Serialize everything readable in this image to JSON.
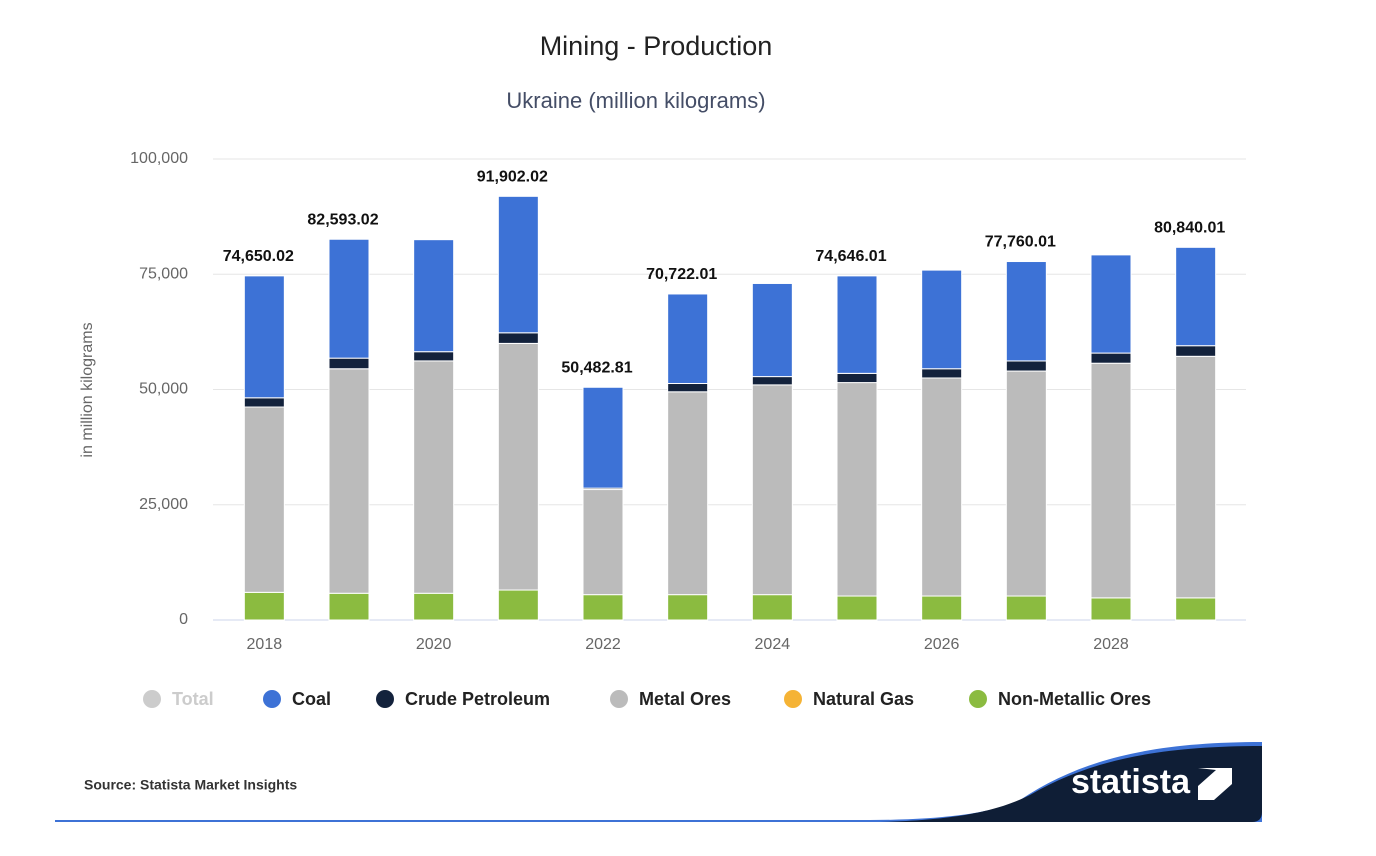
{
  "chart_data": {
    "type": "stacked_bar",
    "title": "Mining - Production",
    "subtitle": "Ukraine (million kilograms)",
    "y_label": "in million kilograms",
    "categories": [
      "2018",
      null,
      "2020",
      null,
      "2022",
      null,
      "2024",
      null,
      "2026",
      null,
      "2028",
      null
    ],
    "ylim": [
      0,
      100000
    ],
    "yticks": [
      0,
      {
        "value": 25000,
        "label": "25,000"
      },
      {
        "value": 50000,
        "label": "50,000"
      },
      {
        "value": 75000,
        "label": "75,000"
      },
      {
        "value": 100000,
        "label": "100,000"
      }
    ],
    "grid": true,
    "series": [
      {
        "name": "Total",
        "color": "#cccccc",
        "hidden": true,
        "values": [
          74650.02,
          82593.02,
          null,
          91902.02,
          50482.81,
          70722.01,
          null,
          74646.01,
          null,
          77760.01,
          null,
          80840.01
        ],
        "value_labels": [
          "74,650.02",
          "82,593.02",
          null,
          "91,902.02",
          "50,482.81",
          "70,722.01",
          null,
          "74,646.01",
          null,
          "77,760.01",
          null,
          "80,840.01"
        ]
      },
      {
        "name": "Coal",
        "color": "#3d72d6",
        "values": [
          26450,
          25793,
          24300,
          29602,
          21883,
          19422,
          20200,
          21146,
          21400,
          21560,
          21300,
          21340
        ]
      },
      {
        "name": "Crude Petroleum",
        "color": "#13223c",
        "values": [
          2000,
          2300,
          2000,
          2300,
          300,
          1800,
          1800,
          2000,
          2000,
          2200,
          2200,
          2300
        ]
      },
      {
        "name": "Metal Ores",
        "color": "#bbbbbb",
        "values": [
          40200,
          48700,
          50400,
          53500,
          22800,
          44000,
          45500,
          46300,
          47300,
          48800,
          50900,
          52400
        ]
      },
      {
        "name": "Natural Gas",
        "color": "#f5b335",
        "values": [
          0,
          0,
          0,
          0,
          0,
          0,
          0,
          0,
          0,
          0,
          0,
          0
        ]
      },
      {
        "name": "Non-Metallic Ores",
        "color": "#8bbb40",
        "values": [
          6000,
          5800,
          5800,
          6500,
          5500,
          5500,
          5500,
          5200,
          5200,
          5200,
          4800,
          4800
        ]
      }
    ],
    "source": "Source: Statista Market Insights",
    "brand": "statista"
  }
}
